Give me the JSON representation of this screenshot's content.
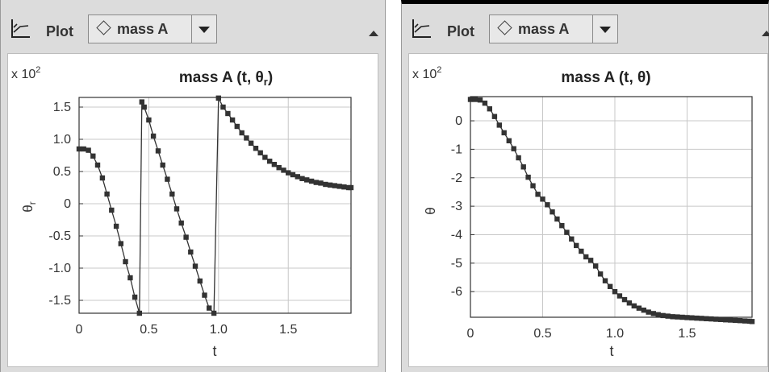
{
  "panels": [
    {
      "toolbar": {
        "plot_label": "Plot",
        "selected_object": "mass A"
      },
      "chart": {
        "title": "mass A (t, θr)",
        "title_main": "mass A (t, θ",
        "title_sub": "r",
        "title_end": ")",
        "multiplier": "x 10",
        "multiplier_exp": "2",
        "ylabel": "θ",
        "ylabel_sub": "r",
        "xlabel": "t",
        "xticks": [
          "0",
          "0.5",
          "1.0",
          "1.5"
        ],
        "yticks": [
          "1.5",
          "1.0",
          "0.5",
          "0",
          "-0.5",
          "-1.0",
          "-1.5"
        ]
      }
    },
    {
      "toolbar": {
        "plot_label": "Plot",
        "selected_object": "mass A"
      },
      "chart": {
        "title": "mass A (t, θ)",
        "multiplier": "x 10",
        "multiplier_exp": "2",
        "ylabel": "θ",
        "xlabel": "t",
        "xticks": [
          "0",
          "0.5",
          "1.0",
          "1.5"
        ],
        "yticks": [
          "0",
          "-1",
          "-2",
          "-3",
          "-4",
          "-5",
          "-6"
        ]
      }
    }
  ],
  "chart_data": [
    {
      "type": "line",
      "title": "mass A (t, θr)",
      "xlabel": "t",
      "ylabel": "θr (x 10^2)",
      "xlim": [
        0,
        1.95
      ],
      "ylim": [
        -1.7,
        1.65
      ],
      "grid": true,
      "series": [
        {
          "x": [
            0,
            0.033,
            0.067,
            0.1,
            0.133,
            0.167,
            0.2,
            0.233,
            0.267,
            0.3,
            0.333,
            0.367,
            0.4,
            0.433,
            0.45,
            0.467,
            0.5,
            0.533,
            0.567,
            0.6,
            0.633,
            0.667,
            0.7,
            0.733,
            0.767,
            0.8,
            0.833,
            0.867,
            0.9,
            0.933,
            0.967,
            1.0,
            1.033,
            1.067,
            1.1,
            1.133,
            1.167,
            1.2,
            1.233,
            1.267,
            1.3,
            1.333,
            1.367,
            1.4,
            1.433,
            1.467,
            1.5,
            1.533,
            1.567,
            1.6,
            1.633,
            1.667,
            1.7,
            1.733,
            1.767,
            1.8,
            1.833,
            1.867,
            1.9,
            1.933,
            1.95
          ],
          "y": [
            0.85,
            0.85,
            0.83,
            0.74,
            0.6,
            0.4,
            0.15,
            -0.1,
            -0.35,
            -0.62,
            -0.9,
            -1.15,
            -1.45,
            -1.7,
            1.58,
            1.5,
            1.3,
            1.05,
            0.82,
            0.6,
            0.38,
            0.15,
            -0.08,
            -0.3,
            -0.52,
            -0.75,
            -0.97,
            -1.2,
            -1.42,
            -1.62,
            -1.7,
            1.64,
            1.5,
            1.4,
            1.3,
            1.2,
            1.1,
            1.02,
            0.94,
            0.86,
            0.79,
            0.72,
            0.66,
            0.61,
            0.56,
            0.52,
            0.48,
            0.45,
            0.42,
            0.39,
            0.37,
            0.35,
            0.33,
            0.32,
            0.3,
            0.29,
            0.28,
            0.27,
            0.26,
            0.25,
            0.25
          ]
        }
      ]
    },
    {
      "type": "line",
      "title": "mass A (t, θ)",
      "xlabel": "t",
      "ylabel": "θ (x 10^2)",
      "xlim": [
        0,
        1.95
      ],
      "ylim": [
        -6.9,
        0.85
      ],
      "grid": true,
      "series": [
        {
          "x": [
            0,
            0.033,
            0.067,
            0.1,
            0.133,
            0.167,
            0.2,
            0.233,
            0.267,
            0.3,
            0.333,
            0.367,
            0.4,
            0.433,
            0.467,
            0.5,
            0.533,
            0.567,
            0.6,
            0.633,
            0.667,
            0.7,
            0.733,
            0.767,
            0.8,
            0.833,
            0.867,
            0.9,
            0.933,
            0.967,
            1.0,
            1.033,
            1.067,
            1.1,
            1.133,
            1.167,
            1.2,
            1.233,
            1.267,
            1.3,
            1.333,
            1.367,
            1.4,
            1.433,
            1.467,
            1.5,
            1.533,
            1.567,
            1.6,
            1.633,
            1.667,
            1.7,
            1.733,
            1.767,
            1.8,
            1.833,
            1.867,
            1.9,
            1.933,
            1.95
          ],
          "y": [
            0.75,
            0.75,
            0.73,
            0.62,
            0.42,
            0.15,
            -0.15,
            -0.42,
            -0.7,
            -0.98,
            -1.3,
            -1.62,
            -1.98,
            -2.28,
            -2.58,
            -2.75,
            -2.95,
            -3.2,
            -3.45,
            -3.68,
            -3.92,
            -4.15,
            -4.38,
            -4.58,
            -4.78,
            -4.9,
            -5.1,
            -5.38,
            -5.62,
            -5.82,
            -6.0,
            -6.15,
            -6.28,
            -6.4,
            -6.5,
            -6.58,
            -6.65,
            -6.72,
            -6.77,
            -6.81,
            -6.84,
            -6.86,
            -6.88,
            -6.89,
            -6.9,
            -6.91,
            -6.92,
            -6.93,
            -6.94,
            -6.95,
            -6.96,
            -6.97,
            -6.98,
            -6.99,
            -7.0,
            -7.01,
            -7.02,
            -7.03,
            -7.04,
            -7.05
          ]
        }
      ]
    }
  ]
}
